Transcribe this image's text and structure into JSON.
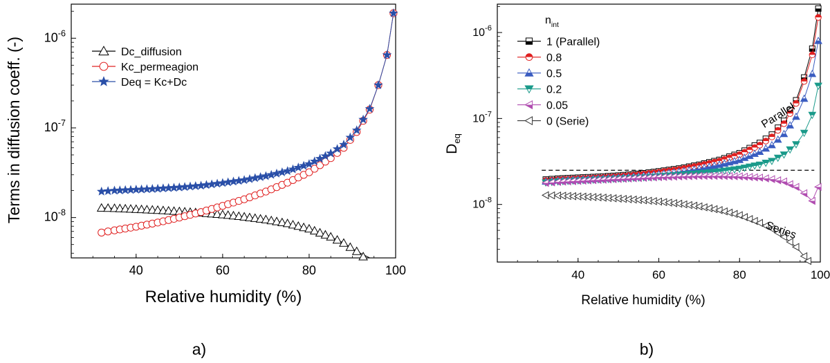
{
  "chart_data": [
    {
      "type": "line",
      "panel_label": "a)",
      "xlabel": "Relative humidity (%)",
      "ylabel": "Terms in diffusion coeff. (-)",
      "xlim": [
        25,
        100
      ],
      "ylim_log10": [
        -8.45,
        -5.62
      ],
      "x_ticks": [
        40,
        60,
        80,
        100
      ],
      "y_ticks": [
        {
          "exp": -8,
          "label": "10",
          "sup": "-8"
        },
        {
          "exp": -7,
          "label": "10",
          "sup": "-7"
        },
        {
          "exp": -6,
          "label": "10",
          "sup": "-6"
        }
      ],
      "legend_position": "upper-left",
      "series": [
        {
          "name": "Dc_diffusion",
          "marker": "triangle-open",
          "color": "#000000",
          "x": [
            32,
            35,
            40,
            45,
            50,
            55,
            60,
            65,
            70,
            75,
            80,
            85,
            88,
            91,
            94,
            96,
            97
          ],
          "y": [
            1.28e-08,
            1.27e-08,
            1.24e-08,
            1.21e-08,
            1.17e-08,
            1.13e-08,
            1.08e-08,
            1.02e-08,
            9.5e-09,
            8.6e-09,
            7.5e-09,
            6.1e-09,
            5.2e-09,
            4.2e-09,
            3.2e-09,
            2.5e-09,
            2.1e-09
          ]
        },
        {
          "name": "Kc_permeagion",
          "marker": "circle-open",
          "color": "#e02020",
          "x": [
            32,
            35,
            40,
            45,
            50,
            55,
            60,
            65,
            70,
            75,
            80,
            85,
            88,
            91,
            94,
            96,
            98,
            99.5
          ],
          "y": [
            6.8e-09,
            7.2e-09,
            7.9e-09,
            8.8e-09,
            1e-08,
            1.15e-08,
            1.35e-08,
            1.6e-08,
            1.95e-08,
            2.45e-08,
            3.2e-08,
            4.6e-08,
            6e-08,
            9e-08,
            1.6e-07,
            3e-07,
            6.5e-07,
            1.9e-06
          ]
        },
        {
          "name": "Deq = Kc+Dc",
          "marker": "star-filled",
          "color": "#2a4fa8",
          "x": [
            32,
            35,
            40,
            45,
            50,
            55,
            60,
            65,
            70,
            75,
            80,
            85,
            88,
            91,
            94,
            96,
            98,
            99.5
          ],
          "y": [
            1.95e-08,
            2e-08,
            2.05e-08,
            2.1e-08,
            2.17e-08,
            2.27e-08,
            2.43e-08,
            2.62e-08,
            2.9e-08,
            3.3e-08,
            3.95e-08,
            5.2e-08,
            6.5e-08,
            9.4e-08,
            1.63e-07,
            3e-07,
            6.5e-07,
            1.9e-06
          ]
        }
      ]
    },
    {
      "type": "line",
      "panel_label": "b)",
      "xlabel": "Relative humidity (%)",
      "ylabel": "D",
      "ylabel_sub": "eq",
      "xlim": [
        20,
        100
      ],
      "ylim_log10": [
        -8.67,
        -5.67
      ],
      "x_ticks": [
        40,
        60,
        80,
        100
      ],
      "y_ticks": [
        {
          "exp": -8,
          "label": "10",
          "sup": "-8"
        },
        {
          "exp": -7,
          "label": "10",
          "sup": "-7"
        },
        {
          "exp": -6,
          "label": "10",
          "sup": "-6"
        }
      ],
      "legend_title": "n",
      "legend_title_sub": "int",
      "legend_position": "upper-left",
      "reference_line_y": 2.5e-08,
      "annotations": [
        {
          "text": "Parallel",
          "at_x": 90,
          "at_y": 1e-07,
          "rotate": -32
        },
        {
          "text": "Series",
          "at_x": 90,
          "at_y": 4.6e-09,
          "rotate": 20
        }
      ],
      "series": [
        {
          "name": "1  (Parallel)",
          "marker": "square-half",
          "color": "#000000",
          "x": [
            32,
            35,
            40,
            45,
            50,
            55,
            60,
            65,
            70,
            75,
            80,
            85,
            88,
            91,
            94,
            96,
            98,
            99.5
          ],
          "y": [
            1.95e-08,
            2e-08,
            2.05e-08,
            2.1e-08,
            2.17e-08,
            2.27e-08,
            2.43e-08,
            2.62e-08,
            2.9e-08,
            3.3e-08,
            3.95e-08,
            5.2e-08,
            6.5e-08,
            9.4e-08,
            1.63e-07,
            3e-07,
            6.5e-07,
            1.9e-06
          ]
        },
        {
          "name": "0.8",
          "marker": "circle-half",
          "color": "#e02020",
          "x": [
            32,
            35,
            40,
            45,
            50,
            55,
            60,
            65,
            70,
            75,
            80,
            85,
            88,
            91,
            94,
            96,
            98,
            99.5
          ],
          "y": [
            1.9e-08,
            1.95e-08,
            2e-08,
            2.05e-08,
            2.12e-08,
            2.22e-08,
            2.37e-08,
            2.56e-08,
            2.83e-08,
            3.2e-08,
            3.8e-08,
            4.9e-08,
            6.1e-08,
            8.7e-08,
            1.5e-07,
            2.7e-07,
            5.5e-07,
            1.5e-06
          ]
        },
        {
          "name": "0.5",
          "marker": "triangle-up-half",
          "color": "#3a5cc0",
          "x": [
            32,
            35,
            40,
            45,
            50,
            55,
            60,
            65,
            70,
            75,
            80,
            85,
            88,
            91,
            94,
            96,
            98,
            99.5
          ],
          "y": [
            1.85e-08,
            1.9e-08,
            1.95e-08,
            2e-08,
            2.05e-08,
            2.13e-08,
            2.25e-08,
            2.4e-08,
            2.6e-08,
            2.9e-08,
            3.3e-08,
            4.1e-08,
            4.9e-08,
            6.6e-08,
            1.05e-07,
            1.7e-07,
            3.3e-07,
            8e-07
          ]
        },
        {
          "name": "0.2",
          "marker": "triangle-down-half",
          "color": "#1a9a8a",
          "x": [
            32,
            35,
            40,
            45,
            50,
            55,
            60,
            65,
            70,
            75,
            80,
            85,
            88,
            91,
            94,
            96,
            98,
            99.5
          ],
          "y": [
            1.8e-08,
            1.85e-08,
            1.9e-08,
            1.95e-08,
            2e-08,
            2.05e-08,
            2.12e-08,
            2.2e-08,
            2.3e-08,
            2.42e-08,
            2.6e-08,
            2.9e-08,
            3.2e-08,
            3.8e-08,
            5e-08,
            6.8e-08,
            1.1e-07,
            2.4e-07
          ]
        },
        {
          "name": "0.05",
          "marker": "triangle-left-half",
          "color": "#b04cb0",
          "x": [
            32,
            35,
            40,
            45,
            50,
            55,
            60,
            65,
            70,
            75,
            80,
            85,
            88,
            91,
            94,
            96,
            98,
            99.5
          ],
          "y": [
            1.78e-08,
            1.83e-08,
            1.88e-08,
            1.93e-08,
            1.98e-08,
            2.03e-08,
            2.08e-08,
            2.12e-08,
            2.15e-08,
            2.15e-08,
            2.12e-08,
            2.05e-08,
            1.97e-08,
            1.85e-08,
            1.6e-08,
            1.35e-08,
            1.1e-08,
            1.6e-08
          ]
        },
        {
          "name": "0  (Serie)",
          "marker": "triangle-left-open",
          "color": "#333333",
          "x": [
            32,
            35,
            40,
            45,
            50,
            55,
            60,
            65,
            70,
            75,
            80,
            85,
            88,
            91,
            94,
            96,
            97
          ],
          "y": [
            1.28e-08,
            1.27e-08,
            1.24e-08,
            1.21e-08,
            1.17e-08,
            1.13e-08,
            1.08e-08,
            1.02e-08,
            9.5e-09,
            8.6e-09,
            7.5e-09,
            6.1e-09,
            5.2e-09,
            4.2e-09,
            3.2e-09,
            2.5e-09,
            2.2e-09
          ]
        }
      ]
    }
  ]
}
